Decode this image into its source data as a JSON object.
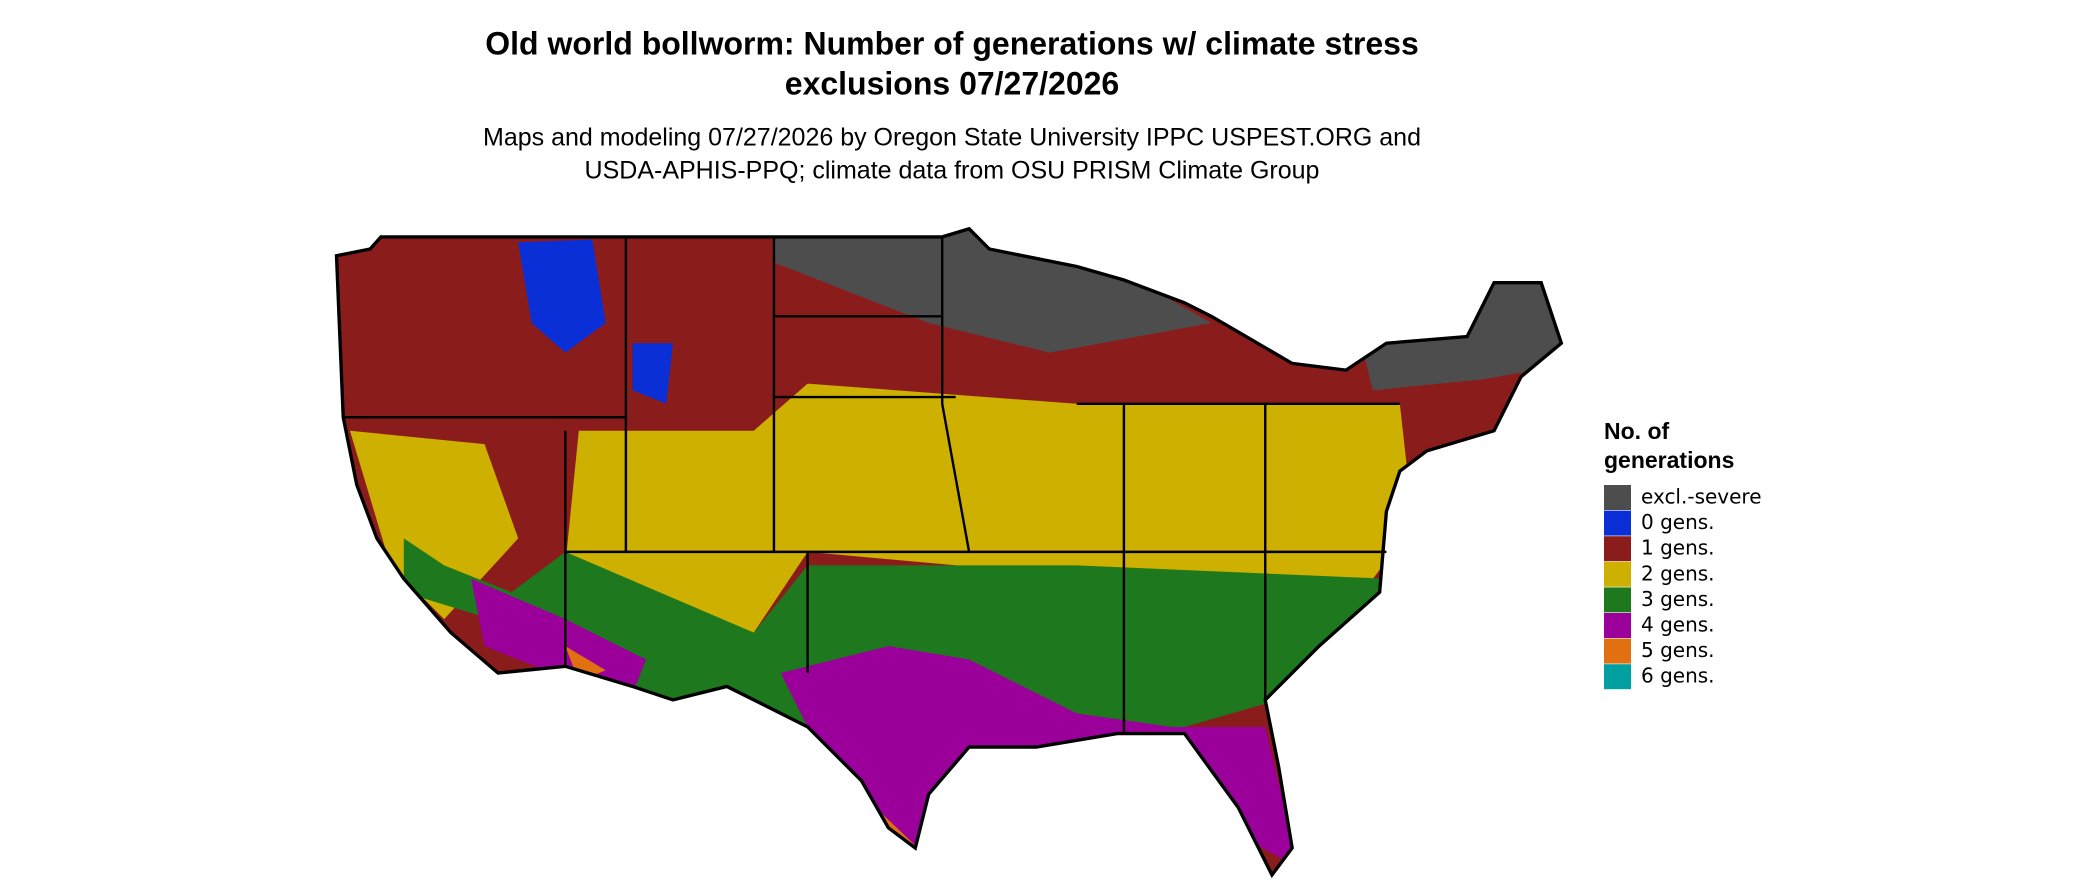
{
  "header": {
    "title": [
      "Old world bollworm: Number of generations w/ climate stress",
      "exclusions 07/27/2026"
    ],
    "subtitle": [
      "Maps and modeling 07/27/2026 by Oregon State University IPPC USPEST.ORG and",
      "USDA-APHIS-PPQ; climate data from OSU PRISM Climate Group"
    ]
  },
  "legend": {
    "title": [
      "No. of",
      "generations"
    ],
    "items": [
      {
        "label": "excl.-severe",
        "color": "#4d4d4d"
      },
      {
        "label": "0 gens.",
        "color": "#0a2fd6"
      },
      {
        "label": "1 gens.",
        "color": "#8b1c1c"
      },
      {
        "label": "2 gens.",
        "color": "#cdb000"
      },
      {
        "label": "3 gens.",
        "color": "#1e781e"
      },
      {
        "label": "4 gens.",
        "color": "#9b009b"
      },
      {
        "label": "5 gens.",
        "color": "#e07010"
      },
      {
        "label": "6 gens.",
        "color": "#00a0a0"
      }
    ]
  }
}
